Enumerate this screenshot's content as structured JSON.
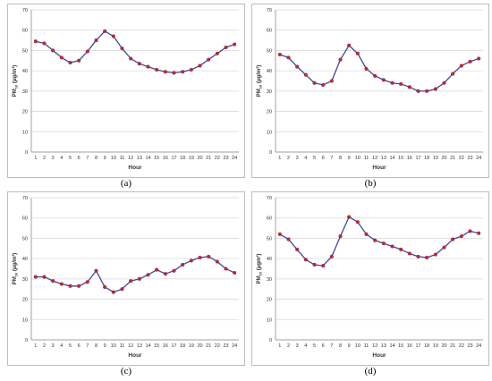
{
  "chart_data": [
    {
      "type": "line",
      "panel_label": "(a)",
      "ylabel_main": "PM",
      "ylabel_sub": "10",
      "ylabel_unit": " (μg/m³)",
      "xlabel": "Hour",
      "x": [
        1,
        2,
        3,
        4,
        5,
        6,
        7,
        8,
        9,
        10,
        11,
        12,
        13,
        14,
        15,
        16,
        17,
        18,
        19,
        20,
        21,
        22,
        23,
        24
      ],
      "yticks": [
        0,
        10,
        20,
        30,
        40,
        50,
        60,
        70
      ],
      "ylim": [
        0,
        70
      ],
      "grid": true,
      "series": [
        {
          "name": "",
          "values": [
            54.5,
            53.5,
            50,
            46.5,
            44,
            45,
            49.5,
            55,
            59.5,
            57,
            51,
            46,
            43.5,
            42,
            40.5,
            39.5,
            39,
            39.5,
            40.5,
            42.5,
            45.5,
            48.5,
            51.5,
            53
          ]
        }
      ]
    },
    {
      "type": "line",
      "panel_label": "(b)",
      "ylabel_main": "PM",
      "ylabel_sub": "10",
      "ylabel_unit": " (μg/m³)",
      "xlabel": "Hour",
      "x": [
        1,
        2,
        3,
        4,
        5,
        6,
        7,
        8,
        9,
        10,
        11,
        12,
        13,
        14,
        15,
        16,
        17,
        18,
        19,
        20,
        21,
        22,
        23,
        24
      ],
      "yticks": [
        0,
        10,
        20,
        30,
        40,
        50,
        60,
        70
      ],
      "ylim": [
        0,
        70
      ],
      "grid": true,
      "series": [
        {
          "name": "",
          "values": [
            48,
            46.5,
            42,
            38,
            34,
            33,
            35,
            45.5,
            52.5,
            48.5,
            41,
            37.5,
            35.5,
            34,
            33.5,
            32,
            30,
            30,
            31,
            34,
            38.5,
            42.5,
            44.5,
            46
          ]
        }
      ]
    },
    {
      "type": "line",
      "panel_label": "(c)",
      "ylabel_main": "PM",
      "ylabel_sub": "10",
      "ylabel_unit": " (μg/m³)",
      "xlabel": "Hour",
      "x": [
        1,
        2,
        3,
        4,
        5,
        6,
        7,
        8,
        9,
        10,
        11,
        12,
        13,
        14,
        15,
        16,
        17,
        18,
        19,
        20,
        21,
        22,
        23,
        24
      ],
      "yticks": [
        0,
        10,
        20,
        30,
        40,
        50,
        60,
        70
      ],
      "ylim": [
        0,
        70
      ],
      "grid": true,
      "series": [
        {
          "name": "",
          "values": [
            31,
            31,
            29,
            27.5,
            26.5,
            26.5,
            28.5,
            34,
            26,
            23.5,
            25,
            29,
            30,
            32,
            34.5,
            32.5,
            34,
            37,
            39,
            40.5,
            41,
            38.5,
            35,
            33
          ]
        }
      ]
    },
    {
      "type": "line",
      "panel_label": "(d)",
      "ylabel_main": "PM",
      "ylabel_sub": "10",
      "ylabel_unit": " (μgm³)",
      "xlabel": "Hour",
      "x": [
        1,
        2,
        3,
        4,
        5,
        6,
        7,
        8,
        9,
        10,
        11,
        12,
        13,
        14,
        15,
        16,
        17,
        18,
        19,
        20,
        21,
        22,
        23,
        24
      ],
      "yticks": [
        0,
        10,
        20,
        30,
        40,
        50,
        60,
        70
      ],
      "ylim": [
        0,
        70
      ],
      "grid": true,
      "series": [
        {
          "name": "",
          "values": [
            52,
            49.5,
            44.5,
            39.5,
            37,
            36.5,
            41,
            51,
            60.5,
            58,
            52,
            49,
            47.5,
            46,
            44.5,
            42.5,
            41,
            40.5,
            42,
            45.5,
            49.5,
            51,
            53.5,
            52.5
          ]
        }
      ]
    }
  ],
  "colors": {
    "line": "#3b4a9c",
    "marker": "#c0283a",
    "grid": "#d9d9d9",
    "axis": "#8c8c8c"
  }
}
